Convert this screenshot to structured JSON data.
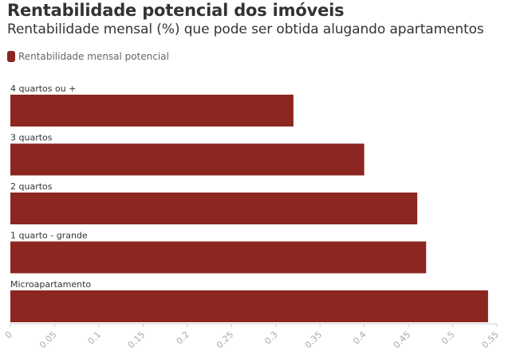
{
  "header": {
    "title": "Rentabilidade potencial dos imóveis",
    "subtitle": "Rentabilidade mensal (%) que pode ser obtida alugando apartamentos"
  },
  "colors": {
    "bar": "#8b2620",
    "axis": "#cccccc"
  },
  "chart_data": {
    "type": "bar",
    "orientation": "horizontal",
    "title": "Rentabilidade potencial dos imóveis",
    "subtitle": "Rentabilidade mensal (%) que pode ser obtida alugando apartamentos",
    "xlabel": "",
    "ylabel": "",
    "legend_position": "top-left",
    "grid": false,
    "categories": [
      "4 quartos ou +",
      "3 quartos",
      "2 quartos",
      "1 quarto - grande",
      "Microapartamento"
    ],
    "series": [
      {
        "name": "Rentabilidade mensal potencial",
        "values": [
          0.32,
          0.4,
          0.46,
          0.47,
          0.54
        ]
      }
    ],
    "xlim": [
      0,
      0.55
    ],
    "ticks": [
      "0",
      "0.05",
      "0.1",
      "0.15",
      "0.2",
      "0.25",
      "0.3",
      "0.35",
      "0.4",
      "0.45",
      "0.5",
      "0.55"
    ]
  }
}
